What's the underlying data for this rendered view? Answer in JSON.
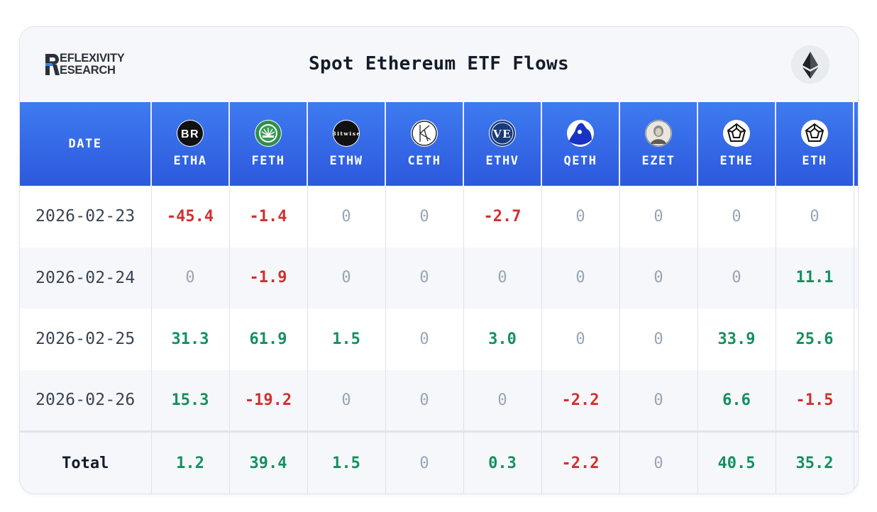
{
  "header": {
    "logo_line1": "EFLEXIVITY",
    "logo_line2": "ESEARCH",
    "title": "Spot Ethereum ETF Flows"
  },
  "table": {
    "date_header": "DATE",
    "tickers": [
      {
        "name": "ETHA",
        "icon": "blackrock-logo-icon"
      },
      {
        "name": "FETH",
        "icon": "fidelity-logo-icon"
      },
      {
        "name": "ETHW",
        "icon": "bitwise-logo-icon"
      },
      {
        "name": "CETH",
        "icon": "21shares-logo-icon"
      },
      {
        "name": "ETHV",
        "icon": "vaneck-logo-icon"
      },
      {
        "name": "QETH",
        "icon": "invesco-logo-icon"
      },
      {
        "name": "EZET",
        "icon": "franklin-logo-icon"
      },
      {
        "name": "ETHE",
        "icon": "grayscale-logo-icon"
      },
      {
        "name": "ETH",
        "icon": "grayscale-mini-logo-icon"
      }
    ],
    "rows": [
      {
        "date": "2026-02-23",
        "values": [
          "-45.4",
          "-1.4",
          "0",
          "0",
          "-2.7",
          "0",
          "0",
          "0",
          "0"
        ]
      },
      {
        "date": "2026-02-24",
        "values": [
          "0",
          "-1.9",
          "0",
          "0",
          "0",
          "0",
          "0",
          "0",
          "11.1"
        ]
      },
      {
        "date": "2026-02-25",
        "values": [
          "31.3",
          "61.9",
          "1.5",
          "0",
          "3.0",
          "0",
          "0",
          "33.9",
          "25.6"
        ]
      },
      {
        "date": "2026-02-26",
        "values": [
          "15.3",
          "-19.2",
          "0",
          "0",
          "0",
          "-2.2",
          "0",
          "6.6",
          "-1.5"
        ]
      }
    ],
    "total_label": "Total",
    "totals": [
      "1.2",
      "39.4",
      "1.5",
      "0",
      "0.3",
      "-2.2",
      "0",
      "40.5",
      "35.2"
    ]
  },
  "colors": {
    "positive": "#14905e",
    "negative": "#d32f2f",
    "zero": "#99a4b5",
    "header_blue": "#3168e6"
  }
}
